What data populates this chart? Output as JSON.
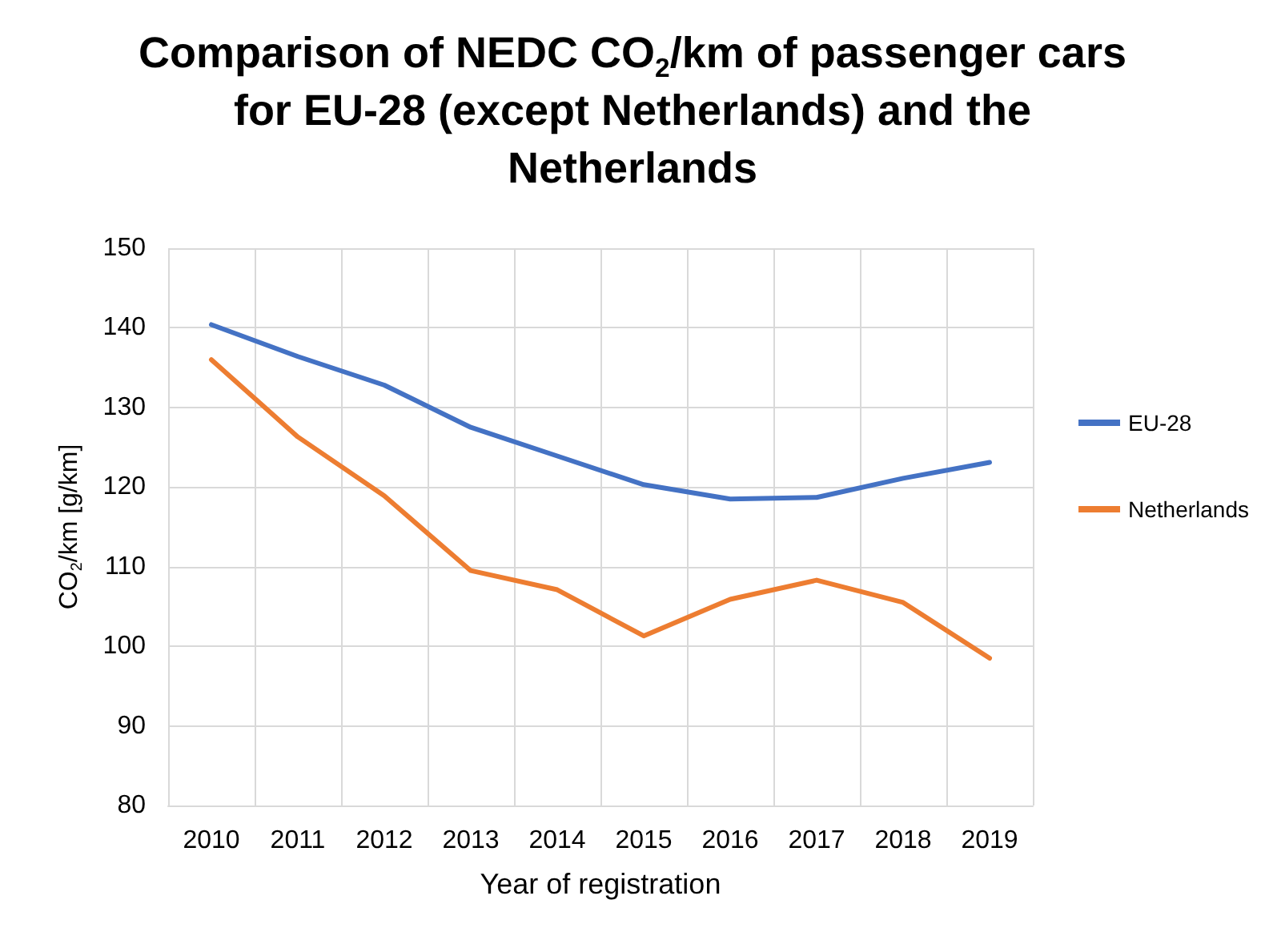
{
  "chart_data": {
    "type": "line",
    "title": "Comparison of NEDC CO$_{2}$/km of passenger cars\nfor EU-28 (except Netherlands) and the\nNetherlands",
    "xlabel": "Year of registration",
    "ylabel": "CO$_{2}$/km [g/km]",
    "categories": [
      "2010",
      "2011",
      "2012",
      "2013",
      "2014",
      "2015",
      "2016",
      "2017",
      "2018",
      "2019"
    ],
    "series": [
      {
        "name": "EU-28",
        "color": "#4472c4",
        "values": [
          140.4,
          136.4,
          132.8,
          127.5,
          123.9,
          120.3,
          118.5,
          118.7,
          121.1,
          123.1
        ]
      },
      {
        "name": "Netherlands",
        "color": "#ed7d31",
        "values": [
          136,
          126.3,
          118.9,
          109.5,
          107.1,
          101.3,
          105.9,
          108.3,
          105.5,
          98.5
        ]
      }
    ],
    "ylim": [
      80,
      150
    ],
    "yticks": [
      80,
      90,
      100,
      110,
      120,
      130,
      140,
      150
    ],
    "grid": true,
    "legend": "right",
    "marker": "none",
    "line_style": "solid"
  }
}
